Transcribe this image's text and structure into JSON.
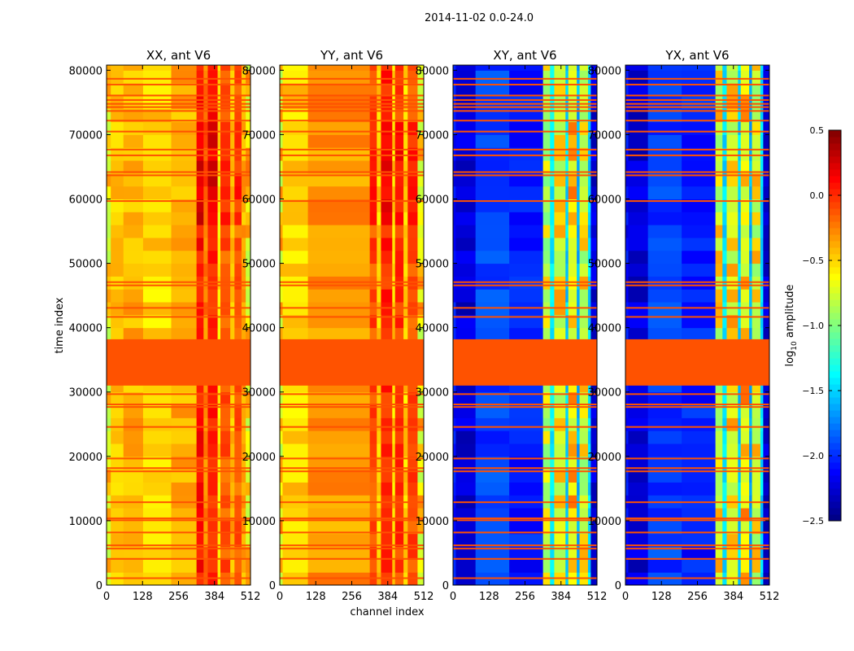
{
  "suptitle": "2014-11-02 0.0-24.0",
  "chart_data": {
    "type": "heatmap",
    "xlabel": "channel index",
    "ylabel": "time index",
    "xlim": [
      0,
      512
    ],
    "ylim": [
      0,
      80800
    ],
    "xticks": [
      "0",
      "128",
      "256",
      "384",
      "512"
    ],
    "xtick_values": [
      0,
      128,
      256,
      384,
      512
    ],
    "yticks": [
      "0",
      "10000",
      "20000",
      "30000",
      "40000",
      "50000",
      "60000",
      "70000",
      "80000"
    ],
    "ytick_values": [
      0,
      10000,
      20000,
      30000,
      40000,
      50000,
      60000,
      70000,
      80000
    ],
    "flag_color": "#ff5200",
    "flagged_block": [
      31000,
      38200
    ],
    "flagged_rows": [
      78600,
      77700,
      76000,
      75300,
      74700,
      74200,
      73600,
      72100,
      70400,
      67600,
      66700,
      64100,
      63600,
      59600,
      47000,
      46500,
      43000,
      41600,
      29600,
      28000,
      27600,
      24500,
      19600,
      18100,
      17600,
      12800,
      10300,
      10000,
      8100,
      6100,
      5600,
      4000,
      1000
    ],
    "panels": [
      {
        "title": "XX, ant V6",
        "bands": [
          [
            0,
            15,
            -0.75
          ],
          [
            15,
            60,
            -0.45
          ],
          [
            60,
            130,
            -0.4
          ],
          [
            130,
            230,
            -0.5
          ],
          [
            230,
            320,
            -0.38
          ],
          [
            320,
            345,
            0.08
          ],
          [
            345,
            360,
            -0.25
          ],
          [
            360,
            395,
            0.05
          ],
          [
            395,
            405,
            -0.55
          ],
          [
            405,
            440,
            -0.12
          ],
          [
            440,
            455,
            -0.42
          ],
          [
            455,
            480,
            -0.15
          ],
          [
            480,
            495,
            -0.38
          ],
          [
            495,
            512,
            -0.72
          ]
        ]
      },
      {
        "title": "YY, ant V6",
        "bands": [
          [
            0,
            10,
            -0.75
          ],
          [
            10,
            100,
            -0.5
          ],
          [
            100,
            320,
            -0.32
          ],
          [
            320,
            345,
            -0.1
          ],
          [
            345,
            360,
            -0.48
          ],
          [
            360,
            400,
            0.02
          ],
          [
            400,
            410,
            -0.5
          ],
          [
            410,
            440,
            -0.05
          ],
          [
            440,
            455,
            -0.5
          ],
          [
            455,
            490,
            -0.1
          ],
          [
            490,
            512,
            -0.72
          ]
        ]
      },
      {
        "title": "XY, ant V6",
        "bands": [
          [
            0,
            10,
            -2.1
          ],
          [
            10,
            80,
            -2.25
          ],
          [
            80,
            200,
            -1.95
          ],
          [
            200,
            320,
            -2.05
          ],
          [
            320,
            345,
            -0.9
          ],
          [
            345,
            360,
            -1.4
          ],
          [
            360,
            400,
            -0.8
          ],
          [
            400,
            410,
            -1.5
          ],
          [
            410,
            440,
            -0.7
          ],
          [
            440,
            450,
            -1.6
          ],
          [
            450,
            480,
            -0.85
          ],
          [
            480,
            490,
            -1.5
          ],
          [
            490,
            512,
            -2.25
          ]
        ]
      },
      {
        "title": "YX, ant V6",
        "bands": [
          [
            0,
            10,
            -2.1
          ],
          [
            10,
            80,
            -2.25
          ],
          [
            80,
            200,
            -1.95
          ],
          [
            200,
            320,
            -2.05
          ],
          [
            320,
            345,
            -0.85
          ],
          [
            345,
            360,
            -1.45
          ],
          [
            360,
            400,
            -0.8
          ],
          [
            400,
            410,
            -1.5
          ],
          [
            410,
            440,
            -0.7
          ],
          [
            440,
            450,
            -1.6
          ],
          [
            450,
            480,
            -0.85
          ],
          [
            480,
            490,
            -1.5
          ],
          [
            490,
            512,
            -2.25
          ]
        ]
      }
    ],
    "colorbar": {
      "label": "log10 amplitude",
      "label_main": "log",
      "label_sub": "10",
      "label_rest": " amplitude",
      "colormap": "jet",
      "range": [
        -2.5,
        0.5
      ],
      "ticks": [
        "0.5",
        "0.0",
        "−0.5",
        "−1.0",
        "−1.5",
        "−2.0",
        "−2.5"
      ],
      "tick_values": [
        0.5,
        0.0,
        -0.5,
        -1.0,
        -1.5,
        -2.0,
        -2.5
      ]
    }
  }
}
